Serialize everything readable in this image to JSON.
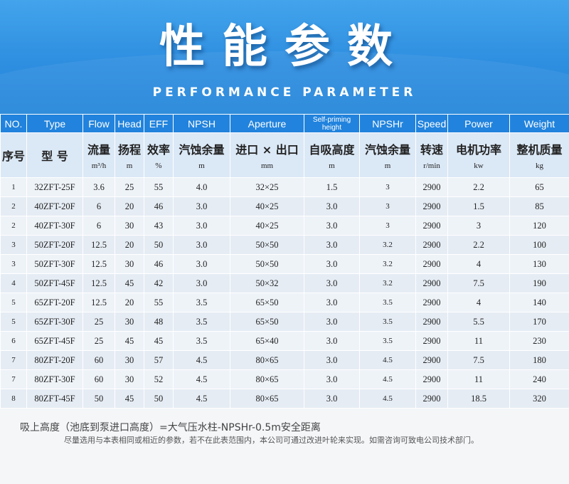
{
  "header": {
    "title": "性能参数",
    "subtitle": "PERFORMANCE PARAMETER"
  },
  "columns": [
    {
      "en": "NO.",
      "cn": "序号",
      "unit": ""
    },
    {
      "en": "Type",
      "cn": "型 号",
      "unit": ""
    },
    {
      "en": "Flow",
      "cn": "流量",
      "unit": "m³/h"
    },
    {
      "en": "Head",
      "cn": "扬程",
      "unit": "m"
    },
    {
      "en": "EFF",
      "cn": "效率",
      "unit": "%"
    },
    {
      "en": "NPSH",
      "cn": "汽蚀余量",
      "unit": "m"
    },
    {
      "en": "Aperture",
      "cn": "进口 × 出口",
      "unit": "mm"
    },
    {
      "en": "Self-priming height",
      "cn": "自吸高度",
      "unit": "m"
    },
    {
      "en": "NPSHr",
      "cn": "汽蚀余量",
      "unit": "m"
    },
    {
      "en": "Speed",
      "cn": "转速",
      "unit": "r/min"
    },
    {
      "en": "Power",
      "cn": "电机功率",
      "unit": "kw"
    },
    {
      "en": "Weight",
      "cn": "整机质量",
      "unit": "kg"
    }
  ],
  "rows": [
    [
      "1",
      "32ZFT-25F",
      "3.6",
      "25",
      "55",
      "4.0",
      "32×25",
      "1.5",
      "3",
      "2900",
      "2.2",
      "65"
    ],
    [
      "2",
      "40ZFT-20F",
      "6",
      "20",
      "46",
      "3.0",
      "40×25",
      "3.0",
      "3",
      "2900",
      "1.5",
      "85"
    ],
    [
      "2",
      "40ZFT-30F",
      "6",
      "30",
      "43",
      "3.0",
      "40×25",
      "3.0",
      "3",
      "2900",
      "3",
      "120"
    ],
    [
      "3",
      "50ZFT-20F",
      "12.5",
      "20",
      "50",
      "3.0",
      "50×50",
      "3.0",
      "3.2",
      "2900",
      "2.2",
      "100"
    ],
    [
      "3",
      "50ZFT-30F",
      "12.5",
      "30",
      "46",
      "3.0",
      "50×50",
      "3.0",
      "3.2",
      "2900",
      "4",
      "130"
    ],
    [
      "4",
      "50ZFT-45F",
      "12.5",
      "45",
      "42",
      "3.0",
      "50×32",
      "3.0",
      "3.2",
      "2900",
      "7.5",
      "190"
    ],
    [
      "5",
      "65ZFT-20F",
      "12.5",
      "20",
      "55",
      "3.5",
      "65×50",
      "3.0",
      "3.5",
      "2900",
      "4",
      "140"
    ],
    [
      "5",
      "65ZFT-30F",
      "25",
      "30",
      "48",
      "3.5",
      "65×50",
      "3.0",
      "3.5",
      "2900",
      "5.5",
      "170"
    ],
    [
      "6",
      "65ZFT-45F",
      "25",
      "45",
      "45",
      "3.5",
      "65×40",
      "3.0",
      "3.5",
      "2900",
      "11",
      "230"
    ],
    [
      "7",
      "80ZFT-20F",
      "60",
      "30",
      "57",
      "4.5",
      "80×65",
      "3.0",
      "4.5",
      "2900",
      "7.5",
      "180"
    ],
    [
      "7",
      "80ZFT-30F",
      "60",
      "30",
      "52",
      "4.5",
      "80×65",
      "3.0",
      "4.5",
      "2900",
      "11",
      "240"
    ],
    [
      "8",
      "80ZFT-45F",
      "50",
      "45",
      "50",
      "4.5",
      "80×65",
      "3.0",
      "4.5",
      "2900",
      "18.5",
      "320"
    ]
  ],
  "notes": {
    "formula": "吸上高度（池底到泵进口高度）=大气压水柱-NPSHr-0.5m安全距离",
    "disclaimer": "尽量选用与本表相同或相近的参数，若不在此表范围内，本公司可通过改进叶轮来实现。如需咨询可致电公司技术部门。"
  },
  "colors": {
    "banner": "#2e8ee0",
    "header_row": "#2183dd",
    "subheader_row": "#dbe8f6"
  }
}
